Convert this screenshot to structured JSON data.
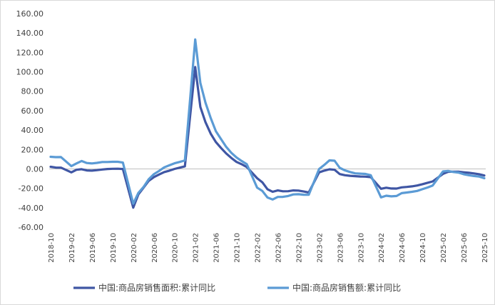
{
  "chart_data": {
    "type": "line",
    "title": "",
    "xlabel": "",
    "ylabel": "",
    "ylim": [
      -60,
      160
    ],
    "yticks": [
      "160.00",
      "140.00",
      "120.00",
      "100.00",
      "80.00",
      "60.00",
      "40.00",
      "20.00",
      "0.00",
      "-20.00",
      "-40.00",
      "-60.00"
    ],
    "xticks": [
      "2018-10",
      "2019-02",
      "2019-06",
      "2019-10",
      "2020-02",
      "2020-06",
      "2020-10",
      "2021-02",
      "2021-06",
      "2021-10",
      "2022-02",
      "2022-06",
      "2022-10",
      "2023-02",
      "2023-06",
      "2023-10",
      "2024-02",
      "2024-06",
      "2024-10",
      "2025-02",
      "2025-06",
      "2025-10"
    ],
    "grid": false,
    "legend_position": "bottom",
    "series": [
      {
        "name": "中国:商品房销售面积:累计同比",
        "color": "#3f56a4",
        "points": [
          [
            "2018-10",
            2.2
          ],
          [
            "2018-11",
            1.4
          ],
          [
            "2018-12",
            1.3
          ],
          [
            "2019-02",
            -3.6
          ],
          [
            "2019-03",
            -0.9
          ],
          [
            "2019-04",
            -0.3
          ],
          [
            "2019-05",
            -1.6
          ],
          [
            "2019-06",
            -1.8
          ],
          [
            "2019-07",
            -1.3
          ],
          [
            "2019-08",
            -0.6
          ],
          [
            "2019-09",
            -0.1
          ],
          [
            "2019-10",
            0.1
          ],
          [
            "2019-11",
            0.2
          ],
          [
            "2019-12",
            -0.1
          ],
          [
            "2020-02",
            -39.9
          ],
          [
            "2020-03",
            -26.3
          ],
          [
            "2020-04",
            -19.3
          ],
          [
            "2020-05",
            -12.3
          ],
          [
            "2020-06",
            -8.4
          ],
          [
            "2020-07",
            -5.8
          ],
          [
            "2020-08",
            -3.3
          ],
          [
            "2020-09",
            -1.8
          ],
          [
            "2020-10",
            0.0
          ],
          [
            "2020-11",
            1.3
          ],
          [
            "2020-12",
            2.6
          ],
          [
            "2021-02",
            104.9
          ],
          [
            "2021-03",
            63.8
          ],
          [
            "2021-04",
            48.1
          ],
          [
            "2021-05",
            36.3
          ],
          [
            "2021-06",
            27.7
          ],
          [
            "2021-07",
            21.5
          ],
          [
            "2021-08",
            15.9
          ],
          [
            "2021-09",
            11.3
          ],
          [
            "2021-10",
            7.2
          ],
          [
            "2021-11",
            4.8
          ],
          [
            "2021-12",
            1.9
          ],
          [
            "2022-02",
            -9.6
          ],
          [
            "2022-03",
            -13.8
          ],
          [
            "2022-04",
            -20.9
          ],
          [
            "2022-05",
            -23.6
          ],
          [
            "2022-06",
            -22.2
          ],
          [
            "2022-07",
            -23.1
          ],
          [
            "2022-08",
            -23.0
          ],
          [
            "2022-09",
            -22.2
          ],
          [
            "2022-10",
            -22.3
          ],
          [
            "2022-11",
            -23.3
          ],
          [
            "2022-12",
            -24.3
          ],
          [
            "2023-02",
            -3.6
          ],
          [
            "2023-03",
            -1.8
          ],
          [
            "2023-04",
            -0.4
          ],
          [
            "2023-05",
            -0.9
          ],
          [
            "2023-06",
            -5.3
          ],
          [
            "2023-07",
            -6.5
          ],
          [
            "2023-08",
            -7.1
          ],
          [
            "2023-09",
            -7.5
          ],
          [
            "2023-10",
            -7.8
          ],
          [
            "2023-11",
            -8.0
          ],
          [
            "2023-12",
            -8.5
          ],
          [
            "2024-02",
            -20.5
          ],
          [
            "2024-03",
            -19.4
          ],
          [
            "2024-04",
            -20.2
          ],
          [
            "2024-05",
            -20.3
          ],
          [
            "2024-06",
            -19.0
          ],
          [
            "2024-07",
            -18.6
          ],
          [
            "2024-08",
            -18.0
          ],
          [
            "2024-09",
            -17.1
          ],
          [
            "2024-10",
            -15.8
          ],
          [
            "2024-11",
            -14.3
          ],
          [
            "2024-12",
            -12.9
          ],
          [
            "2025-02",
            -5.1
          ],
          [
            "2025-03",
            -3.0
          ],
          [
            "2025-04",
            -2.8
          ],
          [
            "2025-05",
            -2.9
          ],
          [
            "2025-06",
            -3.5
          ],
          [
            "2025-07",
            -4.0
          ],
          [
            "2025-08",
            -4.7
          ],
          [
            "2025-09",
            -5.5
          ],
          [
            "2025-10",
            -6.8
          ]
        ]
      },
      {
        "name": "中国:商品房销售额:累计同比",
        "color": "#5b9bd5",
        "points": [
          [
            "2018-10",
            12.5
          ],
          [
            "2018-11",
            12.1
          ],
          [
            "2018-12",
            12.2
          ],
          [
            "2019-02",
            2.8
          ],
          [
            "2019-03",
            5.6
          ],
          [
            "2019-04",
            8.1
          ],
          [
            "2019-05",
            6.1
          ],
          [
            "2019-06",
            5.6
          ],
          [
            "2019-07",
            6.2
          ],
          [
            "2019-08",
            7.1
          ],
          [
            "2019-09",
            7.1
          ],
          [
            "2019-10",
            7.3
          ],
          [
            "2019-11",
            7.3
          ],
          [
            "2019-12",
            6.5
          ],
          [
            "2020-02",
            -35.9
          ],
          [
            "2020-03",
            -24.7
          ],
          [
            "2020-04",
            -18.6
          ],
          [
            "2020-05",
            -10.6
          ],
          [
            "2020-06",
            -5.4
          ],
          [
            "2020-07",
            -2.1
          ],
          [
            "2020-08",
            1.6
          ],
          [
            "2020-09",
            3.7
          ],
          [
            "2020-10",
            5.8
          ],
          [
            "2020-11",
            7.2
          ],
          [
            "2020-12",
            8.7
          ],
          [
            "2021-02",
            133.4
          ],
          [
            "2021-03",
            88.5
          ],
          [
            "2021-04",
            68.2
          ],
          [
            "2021-05",
            52.4
          ],
          [
            "2021-06",
            38.9
          ],
          [
            "2021-07",
            30.7
          ],
          [
            "2021-08",
            22.7
          ],
          [
            "2021-09",
            16.6
          ],
          [
            "2021-10",
            11.8
          ],
          [
            "2021-11",
            8.1
          ],
          [
            "2021-12",
            4.8
          ],
          [
            "2022-02",
            -19.3
          ],
          [
            "2022-03",
            -22.7
          ],
          [
            "2022-04",
            -29.5
          ],
          [
            "2022-05",
            -31.5
          ],
          [
            "2022-06",
            -28.9
          ],
          [
            "2022-07",
            -28.8
          ],
          [
            "2022-08",
            -27.9
          ],
          [
            "2022-09",
            -26.3
          ],
          [
            "2022-10",
            -26.1
          ],
          [
            "2022-11",
            -26.6
          ],
          [
            "2022-12",
            -26.7
          ],
          [
            "2023-02",
            -0.1
          ],
          [
            "2023-03",
            4.1
          ],
          [
            "2023-04",
            8.8
          ],
          [
            "2023-05",
            8.4
          ],
          [
            "2023-06",
            1.1
          ],
          [
            "2023-07",
            -1.5
          ],
          [
            "2023-08",
            -3.2
          ],
          [
            "2023-09",
            -4.6
          ],
          [
            "2023-10",
            -4.9
          ],
          [
            "2023-11",
            -5.2
          ],
          [
            "2023-12",
            -6.5
          ],
          [
            "2024-02",
            -29.3
          ],
          [
            "2024-03",
            -27.6
          ],
          [
            "2024-04",
            -28.3
          ],
          [
            "2024-05",
            -27.9
          ],
          [
            "2024-06",
            -25.0
          ],
          [
            "2024-07",
            -24.3
          ],
          [
            "2024-08",
            -23.6
          ],
          [
            "2024-09",
            -22.7
          ],
          [
            "2024-10",
            -20.9
          ],
          [
            "2024-11",
            -19.2
          ],
          [
            "2024-12",
            -17.1
          ],
          [
            "2025-02",
            -2.6
          ],
          [
            "2025-03",
            -2.1
          ],
          [
            "2025-04",
            -3.2
          ],
          [
            "2025-05",
            -3.8
          ],
          [
            "2025-06",
            -5.5
          ],
          [
            "2025-07",
            -6.5
          ],
          [
            "2025-08",
            -7.3
          ],
          [
            "2025-09",
            -7.9
          ],
          [
            "2025-10",
            -9.6
          ]
        ]
      }
    ]
  }
}
